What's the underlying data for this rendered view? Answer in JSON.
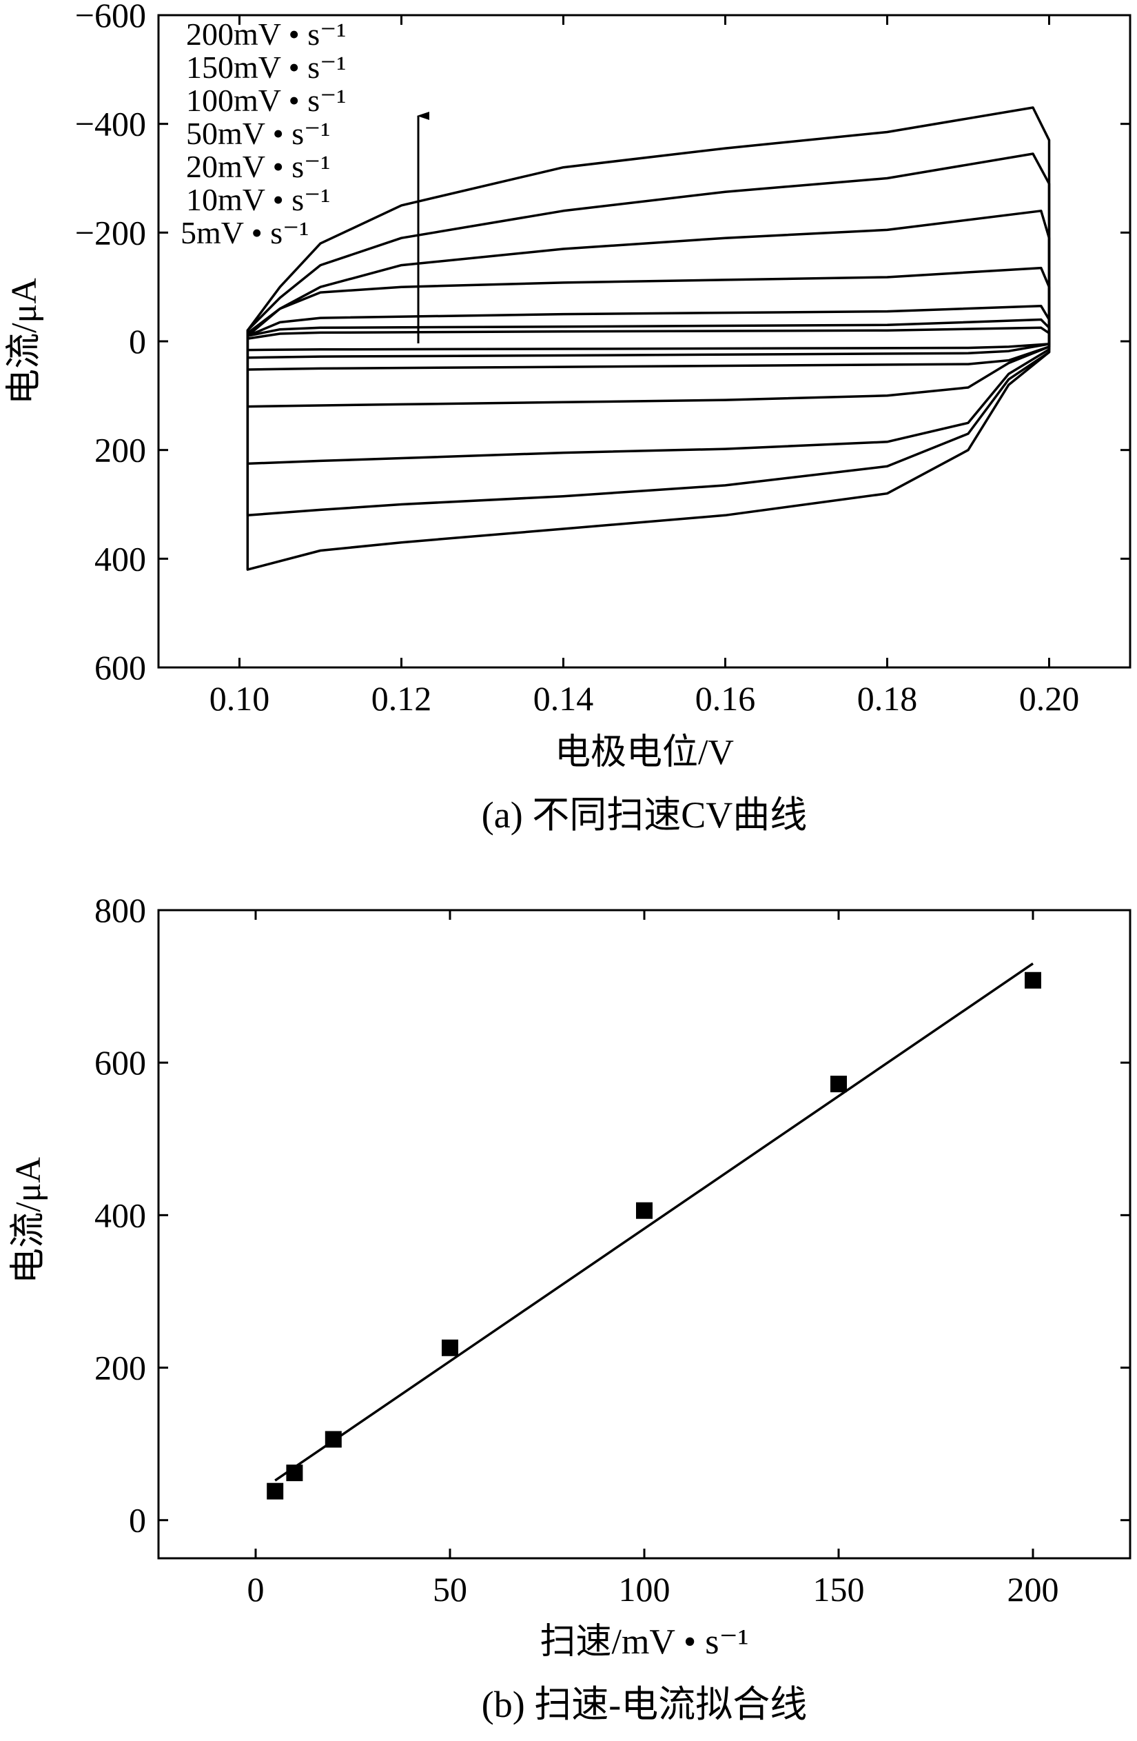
{
  "chart_data": [
    {
      "type": "line",
      "caption": "(a) 不同扫速CV曲线",
      "xlabel": "电极电位/V",
      "ylabel": "电流/μA",
      "xlim": [
        0.09,
        0.21
      ],
      "ylim": [
        -600,
        600
      ],
      "y_inverted": true,
      "x_ticks": [
        "0.10",
        "0.12",
        "0.14",
        "0.16",
        "0.18",
        "0.20"
      ],
      "y_ticks": [
        "−600",
        "−400",
        "−200",
        "0",
        "200",
        "400",
        "600"
      ],
      "grid": false,
      "legend": {
        "placement": "top-left",
        "entries": [
          "200mV • s⁻¹",
          "150mV • s⁻¹",
          "100mV • s⁻¹",
          "50mV • s⁻¹",
          "20mV • s⁻¹",
          "10mV • s⁻¹",
          "5mV • s⁻¹"
        ]
      },
      "annotation": "upward arrow indicating increasing scan rate",
      "series": [
        {
          "name": "200mV • s⁻¹",
          "upper": [
            [
              0.101,
              -20
            ],
            [
              0.105,
              -100
            ],
            [
              0.11,
              -180
            ],
            [
              0.12,
              -250
            ],
            [
              0.14,
              -320
            ],
            [
              0.16,
              -355
            ],
            [
              0.18,
              -385
            ],
            [
              0.198,
              -430
            ],
            [
              0.2,
              -370
            ]
          ],
          "lower": [
            [
              0.2,
              20
            ],
            [
              0.195,
              80
            ],
            [
              0.19,
              200
            ],
            [
              0.18,
              280
            ],
            [
              0.16,
              320
            ],
            [
              0.14,
              345
            ],
            [
              0.12,
              370
            ],
            [
              0.11,
              385
            ],
            [
              0.101,
              420
            ]
          ]
        },
        {
          "name": "150mV • s⁻¹",
          "upper": [
            [
              0.101,
              -20
            ],
            [
              0.105,
              -80
            ],
            [
              0.11,
              -140
            ],
            [
              0.12,
              -190
            ],
            [
              0.14,
              -240
            ],
            [
              0.16,
              -275
            ],
            [
              0.18,
              -300
            ],
            [
              0.198,
              -345
            ],
            [
              0.2,
              -290
            ]
          ],
          "lower": [
            [
              0.2,
              20
            ],
            [
              0.195,
              70
            ],
            [
              0.19,
              170
            ],
            [
              0.18,
              230
            ],
            [
              0.16,
              265
            ],
            [
              0.14,
              285
            ],
            [
              0.12,
              300
            ],
            [
              0.11,
              310
            ],
            [
              0.101,
              320
            ]
          ]
        },
        {
          "name": "100mV • s⁻¹",
          "upper": [
            [
              0.101,
              -15
            ],
            [
              0.105,
              -60
            ],
            [
              0.11,
              -100
            ],
            [
              0.12,
              -140
            ],
            [
              0.14,
              -170
            ],
            [
              0.16,
              -190
            ],
            [
              0.18,
              -205
            ],
            [
              0.199,
              -240
            ],
            [
              0.2,
              -190
            ]
          ],
          "lower": [
            [
              0.2,
              15
            ],
            [
              0.195,
              60
            ],
            [
              0.19,
              150
            ],
            [
              0.18,
              185
            ],
            [
              0.16,
              198
            ],
            [
              0.14,
              205
            ],
            [
              0.12,
              215
            ],
            [
              0.11,
              220
            ],
            [
              0.101,
              225
            ]
          ]
        },
        {
          "name": "50mV • s⁻¹",
          "upper": [
            [
              0.101,
              -10
            ],
            [
              0.105,
              -60
            ],
            [
              0.11,
              -90
            ],
            [
              0.12,
              -100
            ],
            [
              0.14,
              -108
            ],
            [
              0.16,
              -113
            ],
            [
              0.18,
              -118
            ],
            [
              0.199,
              -135
            ],
            [
              0.2,
              -100
            ]
          ],
          "lower": [
            [
              0.2,
              10
            ],
            [
              0.195,
              40
            ],
            [
              0.19,
              85
            ],
            [
              0.18,
              100
            ],
            [
              0.16,
              108
            ],
            [
              0.14,
              112
            ],
            [
              0.12,
              116
            ],
            [
              0.11,
              118
            ],
            [
              0.101,
              120
            ]
          ]
        },
        {
          "name": "20mV • s⁻¹",
          "upper": [
            [
              0.101,
              -10
            ],
            [
              0.105,
              -35
            ],
            [
              0.11,
              -43
            ],
            [
              0.14,
              -50
            ],
            [
              0.18,
              -55
            ],
            [
              0.199,
              -65
            ],
            [
              0.2,
              -40
            ]
          ],
          "lower": [
            [
              0.2,
              10
            ],
            [
              0.195,
              35
            ],
            [
              0.19,
              42
            ],
            [
              0.14,
              47
            ],
            [
              0.11,
              50
            ],
            [
              0.101,
              52
            ]
          ]
        },
        {
          "name": "10mV • s⁻¹",
          "upper": [
            [
              0.101,
              -10
            ],
            [
              0.105,
              -22
            ],
            [
              0.11,
              -25
            ],
            [
              0.14,
              -27
            ],
            [
              0.18,
              -30
            ],
            [
              0.199,
              -40
            ],
            [
              0.2,
              -25
            ]
          ],
          "lower": [
            [
              0.2,
              5
            ],
            [
              0.195,
              18
            ],
            [
              0.19,
              22
            ],
            [
              0.14,
              26
            ],
            [
              0.11,
              28
            ],
            [
              0.101,
              30
            ]
          ]
        },
        {
          "name": "5mV • s⁻¹",
          "upper": [
            [
              0.101,
              -5
            ],
            [
              0.105,
              -14
            ],
            [
              0.11,
              -16
            ],
            [
              0.14,
              -18
            ],
            [
              0.18,
              -20
            ],
            [
              0.199,
              -25
            ],
            [
              0.2,
              -15
            ]
          ],
          "lower": [
            [
              0.2,
              5
            ],
            [
              0.195,
              10
            ],
            [
              0.19,
              12
            ],
            [
              0.14,
              14
            ],
            [
              0.11,
              15
            ],
            [
              0.101,
              16
            ]
          ]
        }
      ]
    },
    {
      "type": "scatter",
      "caption": "(b) 扫速-电流拟合线",
      "xlabel": "扫速/mV • s⁻¹",
      "ylabel": "电流/μA",
      "xlim": [
        -25,
        225
      ],
      "ylim": [
        -50,
        800
      ],
      "x_ticks": [
        "0",
        "50",
        "100",
        "150",
        "200"
      ],
      "y_ticks": [
        "0",
        "200",
        "400",
        "600",
        "800"
      ],
      "grid": false,
      "marker": "square",
      "points": [
        {
          "x": 5,
          "y": 38
        },
        {
          "x": 10,
          "y": 62
        },
        {
          "x": 20,
          "y": 106
        },
        {
          "x": 50,
          "y": 226
        },
        {
          "x": 100,
          "y": 406
        },
        {
          "x": 150,
          "y": 572
        },
        {
          "x": 200,
          "y": 708
        }
      ],
      "fit_line": {
        "x": [
          5,
          200
        ],
        "y": [
          52,
          730
        ]
      }
    }
  ]
}
